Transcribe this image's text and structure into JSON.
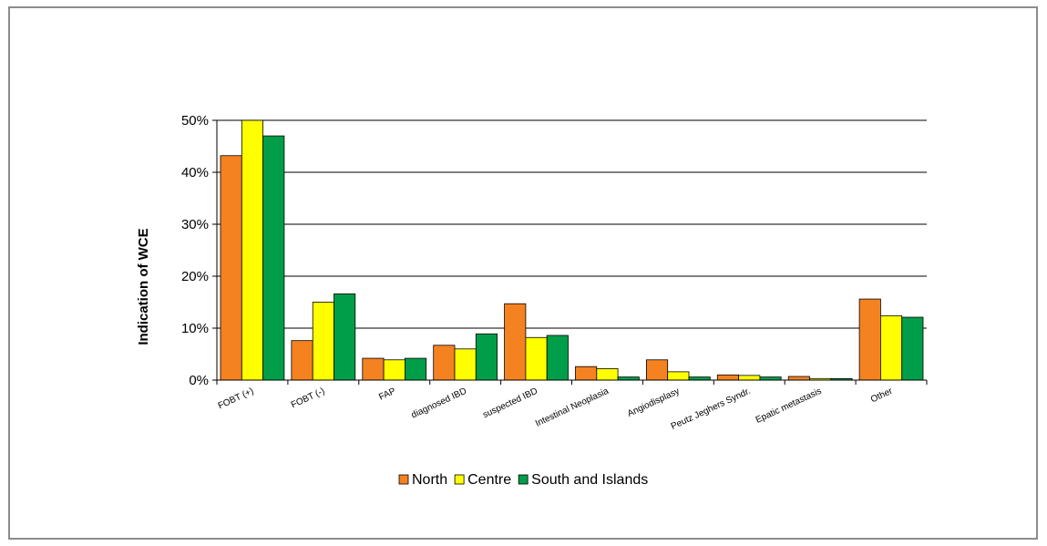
{
  "chart_data": {
    "type": "bar",
    "title": "",
    "xlabel": "",
    "ylabel": "Indication of WCE",
    "ylim": [
      0,
      50
    ],
    "yticks": [
      "0%",
      "10%",
      "20%",
      "30%",
      "40%",
      "50%"
    ],
    "grid": "horizontal",
    "legend_position": "bottom",
    "categories": [
      "FOBT (+)",
      "FOBT (-)",
      "FAP",
      "diagnosed IBD",
      "suspected IBD",
      "Intestinal Neoplasia",
      "Angiodisplasy",
      "Peutz Jeghers Syndr.",
      "Epatic metastasis",
      "Other"
    ],
    "series": [
      {
        "name": "North",
        "color": "#f58220",
        "values": [
          43.2,
          7.6,
          4.2,
          6.7,
          14.7,
          2.6,
          3.9,
          1.0,
          0.7,
          15.6
        ]
      },
      {
        "name": "Centre",
        "color": "#ffff00",
        "values": [
          50.0,
          15.0,
          3.9,
          6.0,
          8.2,
          2.2,
          1.6,
          0.9,
          0.3,
          12.4
        ]
      },
      {
        "name": "South and Islands",
        "color": "#009e49",
        "values": [
          47.0,
          16.6,
          4.2,
          8.9,
          8.6,
          0.6,
          0.6,
          0.6,
          0.3,
          12.1
        ]
      }
    ]
  }
}
